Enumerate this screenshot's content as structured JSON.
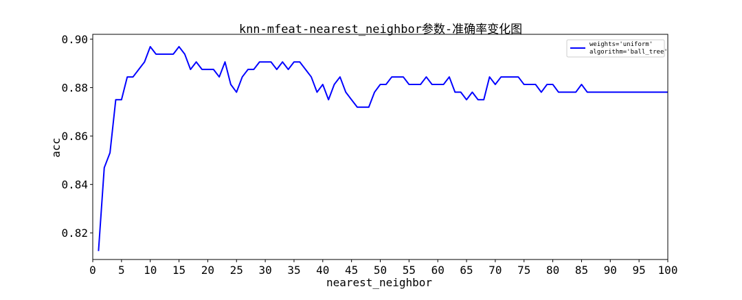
{
  "chart_data": {
    "type": "line",
    "title": "knn-mfeat-nearest_neighbor参数-准确率变化图",
    "xlabel": "nearest_neighbor",
    "ylabel": "acc",
    "xlim": [
      0,
      100
    ],
    "ylim": [
      0.809,
      0.902
    ],
    "x_ticks": [
      0,
      5,
      10,
      15,
      20,
      25,
      30,
      35,
      40,
      45,
      50,
      55,
      60,
      65,
      70,
      75,
      80,
      85,
      90,
      95,
      100
    ],
    "y_ticks": [
      0.82,
      0.84,
      0.86,
      0.88,
      0.9
    ],
    "y_tick_labels": [
      "0.82",
      "0.84",
      "0.86",
      "0.88",
      "0.90"
    ],
    "grid": false,
    "legend_position": "top-right",
    "legend": [
      "weights='uniform'",
      "algorithm='ball_tree'"
    ],
    "series": [
      {
        "color": "#0000ff",
        "x": [
          1,
          2,
          3,
          4,
          5,
          6,
          7,
          8,
          9,
          10,
          11,
          12,
          13,
          14,
          15,
          16,
          17,
          18,
          19,
          20,
          21,
          22,
          23,
          24,
          25,
          26,
          27,
          28,
          29,
          30,
          31,
          32,
          33,
          34,
          35,
          36,
          37,
          38,
          39,
          40,
          41,
          42,
          43,
          44,
          45,
          46,
          47,
          48,
          49,
          50,
          51,
          52,
          53,
          54,
          55,
          56,
          57,
          58,
          59,
          60,
          61,
          62,
          63,
          64,
          65,
          66,
          67,
          68,
          69,
          70,
          71,
          72,
          73,
          74,
          75,
          76,
          77,
          78,
          79,
          80,
          81,
          82,
          83,
          84,
          85,
          86,
          87,
          88,
          89,
          90,
          91,
          92,
          93,
          94,
          95,
          96,
          97,
          98,
          99,
          100
        ],
        "values": [
          0.8125,
          0.8469,
          0.8531,
          0.875,
          0.875,
          0.8844,
          0.8844,
          0.8875,
          0.8906,
          0.8969,
          0.8938,
          0.8938,
          0.8938,
          0.8938,
          0.8969,
          0.8938,
          0.8875,
          0.8906,
          0.8875,
          0.8875,
          0.8875,
          0.8844,
          0.8906,
          0.8813,
          0.8781,
          0.8844,
          0.8875,
          0.8875,
          0.8906,
          0.8906,
          0.8906,
          0.8875,
          0.8906,
          0.8875,
          0.8906,
          0.8906,
          0.8875,
          0.8844,
          0.8781,
          0.8813,
          0.875,
          0.8813,
          0.8844,
          0.8781,
          0.875,
          0.8719,
          0.8719,
          0.8719,
          0.8781,
          0.8813,
          0.8813,
          0.8844,
          0.8844,
          0.8844,
          0.8813,
          0.8813,
          0.8813,
          0.8844,
          0.8813,
          0.8813,
          0.8813,
          0.8844,
          0.8781,
          0.8781,
          0.875,
          0.8781,
          0.875,
          0.875,
          0.8844,
          0.8813,
          0.8844,
          0.8844,
          0.8844,
          0.8844,
          0.8813,
          0.8813,
          0.8813,
          0.8781,
          0.8813,
          0.8813,
          0.8781,
          0.8781,
          0.8781,
          0.8781,
          0.8813,
          0.8781,
          0.8781,
          0.8781,
          0.8781,
          0.8781,
          0.8781,
          0.8781,
          0.8781,
          0.8781,
          0.8781,
          0.8781,
          0.8781,
          0.8781,
          0.8781,
          0.8781
        ]
      }
    ]
  }
}
